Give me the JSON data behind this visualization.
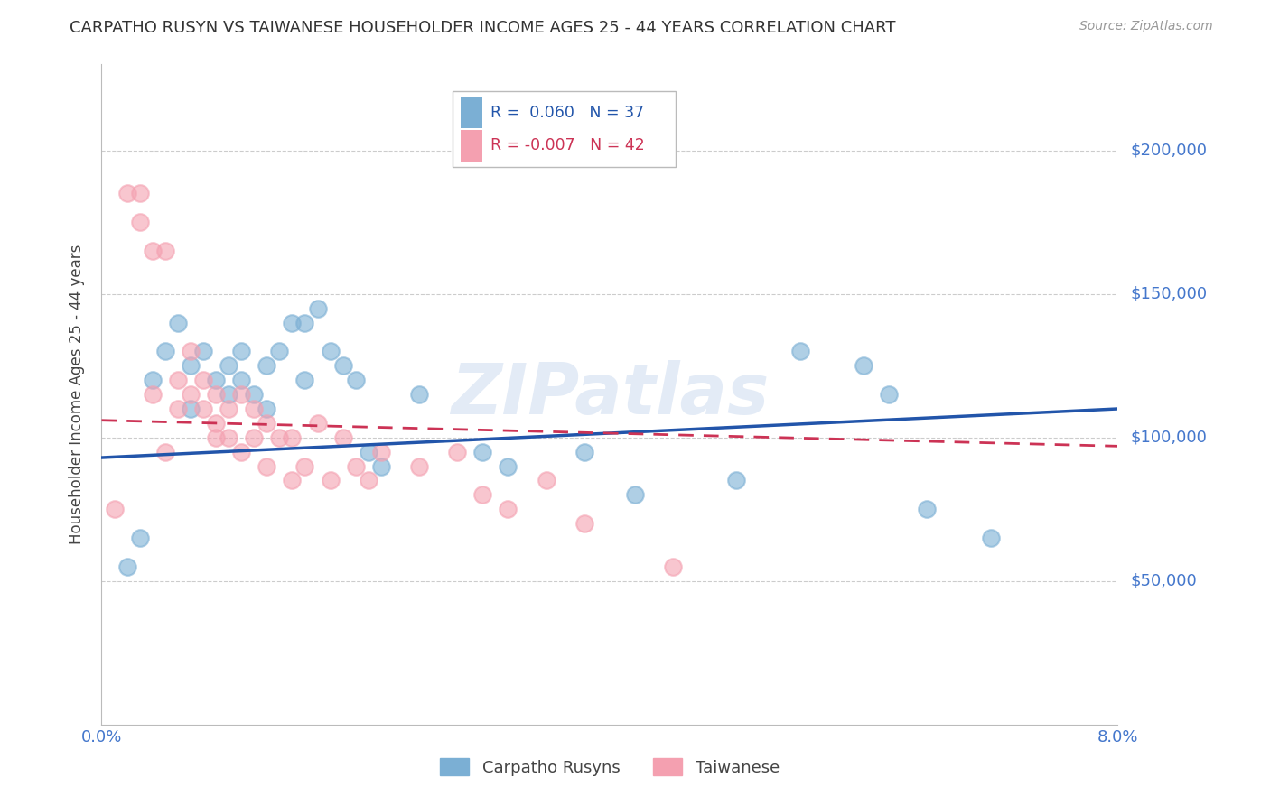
{
  "title": "CARPATHO RUSYN VS TAIWANESE HOUSEHOLDER INCOME AGES 25 - 44 YEARS CORRELATION CHART",
  "source": "Source: ZipAtlas.com",
  "ylabel": "Householder Income Ages 25 - 44 years",
  "x_min": 0.0,
  "x_max": 0.08,
  "y_min": 0,
  "y_max": 230000,
  "yticks": [
    50000,
    100000,
    150000,
    200000
  ],
  "ytick_labels": [
    "$50,000",
    "$100,000",
    "$150,000",
    "$200,000"
  ],
  "xticks": [
    0.0,
    0.02,
    0.04,
    0.06,
    0.08
  ],
  "xtick_labels": [
    "0.0%",
    "",
    "",
    "",
    "8.0%"
  ],
  "blue_color": "#7BAFD4",
  "pink_color": "#F4A0B0",
  "blue_line_color": "#2255AA",
  "pink_line_color": "#CC3355",
  "grid_color": "#CCCCCC",
  "axis_label_color": "#4477CC",
  "title_color": "#333333",
  "legend_R_blue": "R =  0.060",
  "legend_N_blue": "N = 37",
  "legend_R_pink": "R = -0.007",
  "legend_N_pink": "N = 42",
  "watermark": "ZIPatlas",
  "blue_scatter_x": [
    0.002,
    0.003,
    0.004,
    0.005,
    0.006,
    0.007,
    0.007,
    0.008,
    0.009,
    0.01,
    0.01,
    0.011,
    0.011,
    0.012,
    0.013,
    0.013,
    0.014,
    0.015,
    0.016,
    0.016,
    0.017,
    0.018,
    0.019,
    0.02,
    0.021,
    0.022,
    0.025,
    0.03,
    0.032,
    0.038,
    0.042,
    0.05,
    0.055,
    0.06,
    0.062,
    0.065,
    0.07
  ],
  "blue_scatter_y": [
    55000,
    65000,
    120000,
    130000,
    140000,
    125000,
    110000,
    130000,
    120000,
    115000,
    125000,
    120000,
    130000,
    115000,
    125000,
    110000,
    130000,
    140000,
    120000,
    140000,
    145000,
    130000,
    125000,
    120000,
    95000,
    90000,
    115000,
    95000,
    90000,
    95000,
    80000,
    85000,
    130000,
    125000,
    115000,
    75000,
    65000
  ],
  "pink_scatter_x": [
    0.001,
    0.002,
    0.003,
    0.003,
    0.004,
    0.004,
    0.005,
    0.005,
    0.006,
    0.006,
    0.007,
    0.007,
    0.008,
    0.008,
    0.009,
    0.009,
    0.009,
    0.01,
    0.01,
    0.011,
    0.011,
    0.012,
    0.012,
    0.013,
    0.013,
    0.014,
    0.015,
    0.015,
    0.016,
    0.017,
    0.018,
    0.019,
    0.02,
    0.021,
    0.022,
    0.025,
    0.028,
    0.03,
    0.032,
    0.035,
    0.038,
    0.045
  ],
  "pink_scatter_y": [
    75000,
    185000,
    185000,
    175000,
    115000,
    165000,
    165000,
    95000,
    110000,
    120000,
    130000,
    115000,
    120000,
    110000,
    105000,
    115000,
    100000,
    100000,
    110000,
    95000,
    115000,
    110000,
    100000,
    105000,
    90000,
    100000,
    100000,
    85000,
    90000,
    105000,
    85000,
    100000,
    90000,
    85000,
    95000,
    90000,
    95000,
    80000,
    75000,
    85000,
    70000,
    55000
  ]
}
